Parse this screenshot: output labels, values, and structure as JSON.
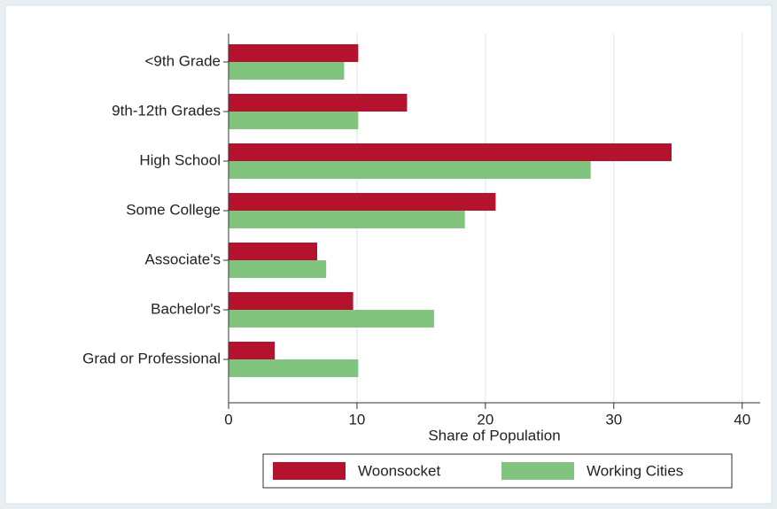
{
  "chart_data": {
    "type": "bar",
    "orientation": "horizontal",
    "x_label": "Share of Population",
    "categories": [
      "<9th Grade",
      "9th-12th Grades",
      "High School",
      "Some College",
      "Associate's",
      "Bachelor's",
      "Grad or Professional"
    ],
    "series": [
      {
        "name": "Woonsocket",
        "color": "#b5122e",
        "values": [
          10.1,
          13.9,
          34.5,
          20.8,
          6.9,
          9.7,
          3.6
        ]
      },
      {
        "name": "Working Cities",
        "color": "#80c47e",
        "values": [
          9.0,
          10.1,
          28.2,
          18.4,
          7.6,
          16.0,
          10.1
        ]
      }
    ],
    "xlim": [
      0,
      41.4
    ],
    "xticks": [
      0,
      10,
      20,
      30,
      40
    ],
    "grid": true,
    "legend": "bottom"
  }
}
